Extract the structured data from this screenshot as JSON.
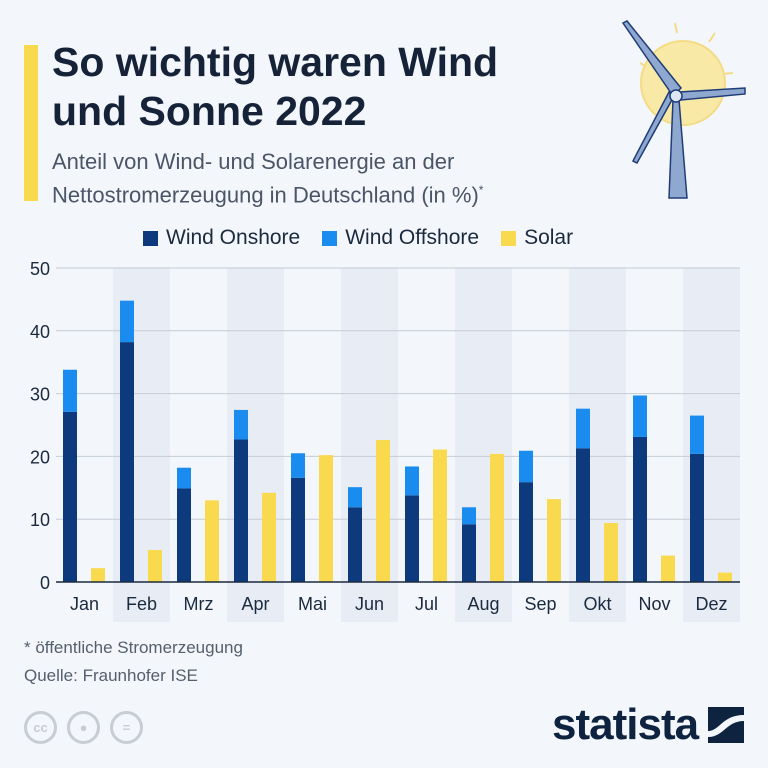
{
  "header": {
    "title_line1": "So wichtig waren Wind",
    "title_line2": "und Sonne 2022",
    "subtitle_line1": "Anteil von Wind- und Solarenergie an der",
    "subtitle_line2": "Nettostromerzeugung in Deutschland (in %)",
    "subtitle_mark": "*"
  },
  "footer": {
    "note": "* öffentliche Stromerzeugung",
    "source": "Quelle: Fraunhofer ISE",
    "license_icons": [
      "cc-icon",
      "by-icon",
      "nd-icon"
    ],
    "license_cc": "cc",
    "license_nd": "=",
    "logo": "statista"
  },
  "colors": {
    "onshore": "#0d3a7d",
    "offshore": "#1a8cf0",
    "solar": "#f9d94e",
    "band": "#e8edf5"
  },
  "chart_data": {
    "type": "bar",
    "stacked_series": [
      "Wind Onshore",
      "Wind Offshore"
    ],
    "categories": [
      "Jan",
      "Feb",
      "Mrz",
      "Apr",
      "Mai",
      "Jun",
      "Jul",
      "Aug",
      "Sep",
      "Okt",
      "Nov",
      "Dez"
    ],
    "series": [
      {
        "name": "Wind Onshore",
        "values": [
          27.1,
          38.2,
          14.9,
          22.7,
          16.6,
          11.9,
          13.8,
          9.2,
          15.9,
          21.3,
          23.1,
          20.4
        ]
      },
      {
        "name": "Wind Offshore",
        "values": [
          6.7,
          6.6,
          3.3,
          4.7,
          3.9,
          3.2,
          4.6,
          2.7,
          5.0,
          6.3,
          6.6,
          6.1
        ]
      },
      {
        "name": "Solar",
        "values": [
          2.2,
          5.1,
          13.0,
          14.2,
          20.2,
          22.6,
          21.1,
          20.4,
          13.2,
          9.4,
          4.2,
          1.5
        ]
      }
    ],
    "ylim": [
      0,
      50
    ],
    "yticks": [
      "0",
      "10",
      "20",
      "30",
      "40",
      "50"
    ],
    "grid": true,
    "legend": "top"
  }
}
